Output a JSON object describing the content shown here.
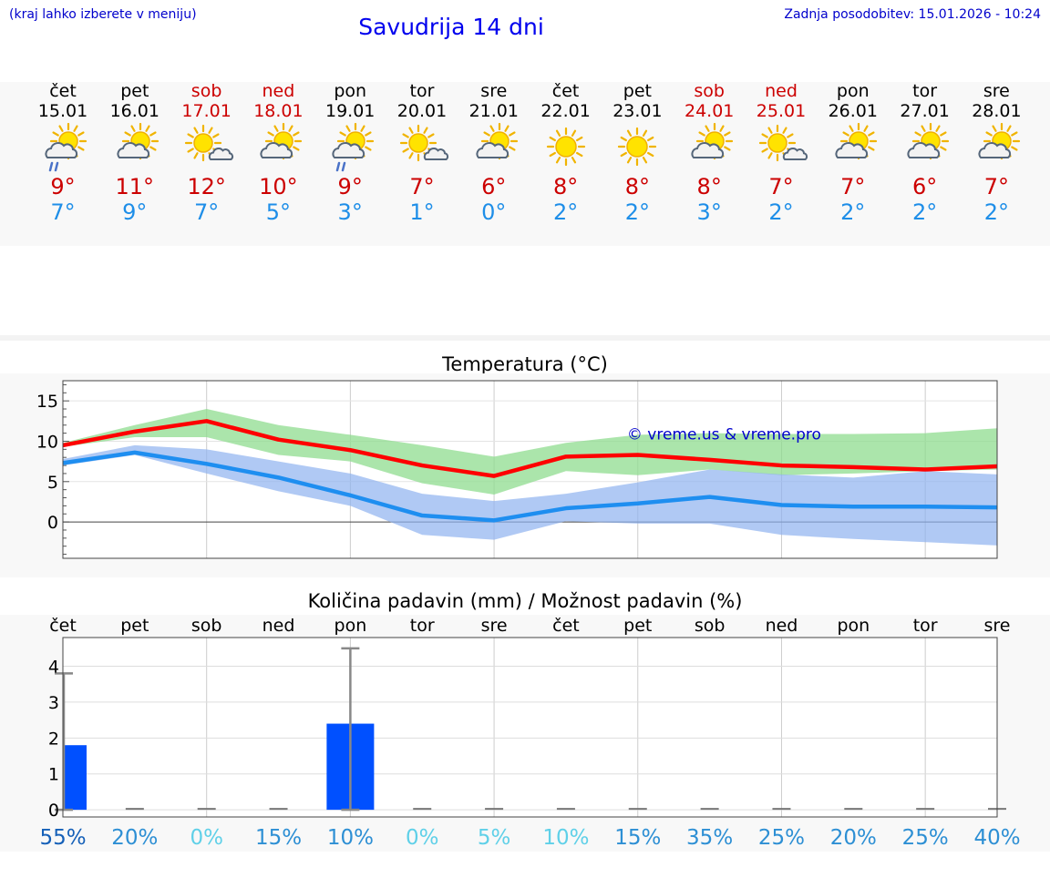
{
  "header": {
    "left_note": "(kraj lahko izberete v meniju)",
    "title": "Savudrija 14 dni",
    "updated": "Zadnja posodobitev: 15.01.2026 - 10:24"
  },
  "forecast_days": [
    {
      "day": "čet",
      "date": "15.01",
      "max": "9°",
      "min": "7°",
      "weekend": false,
      "icon": "partly-cloudy-rain"
    },
    {
      "day": "pet",
      "date": "16.01",
      "max": "11°",
      "min": "9°",
      "weekend": false,
      "icon": "partly-cloudy"
    },
    {
      "day": "sob",
      "date": "17.01",
      "max": "12°",
      "min": "7°",
      "weekend": true,
      "icon": "sunny-cloud"
    },
    {
      "day": "ned",
      "date": "18.01",
      "max": "10°",
      "min": "5°",
      "weekend": true,
      "icon": "partly-cloudy"
    },
    {
      "day": "pon",
      "date": "19.01",
      "max": "9°",
      "min": "3°",
      "weekend": false,
      "icon": "partly-cloudy-rain"
    },
    {
      "day": "tor",
      "date": "20.01",
      "max": "7°",
      "min": "1°",
      "weekend": false,
      "icon": "sunny-cloud"
    },
    {
      "day": "sre",
      "date": "21.01",
      "max": "6°",
      "min": "0°",
      "weekend": false,
      "icon": "partly-cloudy"
    },
    {
      "day": "čet",
      "date": "22.01",
      "max": "8°",
      "min": "2°",
      "weekend": false,
      "icon": "sunny"
    },
    {
      "day": "pet",
      "date": "23.01",
      "max": "8°",
      "min": "2°",
      "weekend": false,
      "icon": "sunny"
    },
    {
      "day": "sob",
      "date": "24.01",
      "max": "8°",
      "min": "3°",
      "weekend": true,
      "icon": "partly-cloudy"
    },
    {
      "day": "ned",
      "date": "25.01",
      "max": "7°",
      "min": "2°",
      "weekend": true,
      "icon": "sunny-cloud"
    },
    {
      "day": "pon",
      "date": "26.01",
      "max": "7°",
      "min": "2°",
      "weekend": false,
      "icon": "partly-cloudy"
    },
    {
      "day": "tor",
      "date": "27.01",
      "max": "6°",
      "min": "2°",
      "weekend": false,
      "icon": "partly-cloudy"
    },
    {
      "day": "sre",
      "date": "28.01",
      "max": "7°",
      "min": "2°",
      "weekend": false,
      "icon": "partly-cloudy"
    }
  ],
  "chart_data": [
    {
      "type": "line",
      "title": "Temperatura (°C)",
      "watermark": "© vreme.us & vreme.pro",
      "ylim": [
        -4.5,
        17.5
      ],
      "yticks": [
        0,
        5,
        10,
        15
      ],
      "x": [
        0,
        1,
        2,
        3,
        4,
        5,
        6,
        7,
        8,
        9,
        10,
        11,
        12,
        13
      ],
      "series": [
        {
          "name": "max",
          "color": "#ff0000",
          "values": [
            9.5,
            11.2,
            12.5,
            10.2,
            8.9,
            7.0,
            5.7,
            8.1,
            8.3,
            7.7,
            7.0,
            6.8,
            6.5,
            6.9
          ]
        },
        {
          "name": "min",
          "color": "#1e8ef0",
          "values": [
            7.3,
            8.6,
            7.2,
            5.5,
            3.3,
            0.8,
            0.2,
            1.7,
            2.3,
            3.1,
            2.1,
            1.9,
            1.9,
            1.8
          ]
        }
      ],
      "bands": [
        {
          "name": "max-range",
          "color": "#8fdc8f",
          "upper": [
            9.8,
            12.0,
            14.0,
            12.0,
            10.8,
            9.5,
            8.1,
            9.8,
            10.8,
            11.0,
            10.9,
            10.9,
            11.0,
            11.6
          ],
          "lower": [
            9.3,
            10.5,
            10.5,
            8.3,
            7.5,
            4.8,
            3.4,
            6.3,
            5.8,
            6.5,
            5.8,
            6.0,
            6.3,
            6.5
          ]
        },
        {
          "name": "min-range",
          "color": "#8fb2ef",
          "upper": [
            7.8,
            9.5,
            9.0,
            7.5,
            6.0,
            3.5,
            2.6,
            3.5,
            4.9,
            6.5,
            5.9,
            5.5,
            6.3,
            5.9
          ]
        },
        {
          "name": "min-range-lower",
          "values": [
            7.0,
            8.3,
            6.0,
            3.8,
            2.0,
            -1.6,
            -2.2,
            0.1,
            -0.2,
            -0.2,
            -1.6,
            -2.1,
            -2.5,
            -2.9
          ]
        }
      ]
    },
    {
      "type": "bar",
      "title": "Količina padavin (mm) / Možnost padavin (%)",
      "categories": [
        "čet",
        "pet",
        "sob",
        "ned",
        "pon",
        "tor",
        "sre",
        "čet",
        "pet",
        "sob",
        "ned",
        "pon",
        "tor",
        "sre"
      ],
      "values": [
        1.8,
        0,
        0,
        0,
        2.4,
        0,
        0,
        0,
        0,
        0,
        0,
        0,
        0,
        0
      ],
      "error_high": [
        3.8,
        0,
        0,
        0,
        4.5,
        0,
        0,
        0,
        0,
        0,
        0,
        0,
        0,
        0
      ],
      "error_low": [
        0,
        0,
        0,
        0,
        0,
        0,
        0,
        0,
        0,
        0,
        0,
        0,
        0,
        0
      ],
      "ylim": [
        -0.2,
        4.8
      ],
      "yticks": [
        0,
        1,
        2,
        3,
        4
      ],
      "bar_color": "#0050ff",
      "chance_percent": [
        "55%",
        "20%",
        "0%",
        "15%",
        "10%",
        "0%",
        "5%",
        "10%",
        "15%",
        "35%",
        "25%",
        "20%",
        "25%",
        "40%"
      ],
      "chance_colors": [
        "#1560b8",
        "#2d8fd4",
        "#5fd0e8",
        "#2d8fd4",
        "#2d8fd4",
        "#5fd0e8",
        "#5fd0e8",
        "#5fd0e8",
        "#2d8fd4",
        "#2d8fd4",
        "#2d8fd4",
        "#2d8fd4",
        "#2d8fd4",
        "#2d8fd4"
      ]
    }
  ]
}
